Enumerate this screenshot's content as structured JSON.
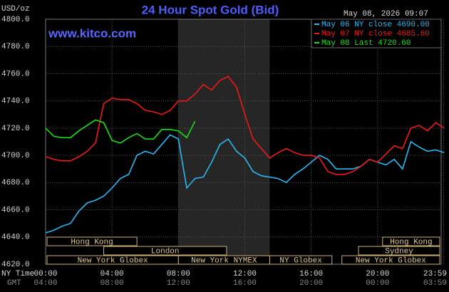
{
  "chart_data": {
    "type": "line",
    "title": "24 Hour Spot Gold (Bid)",
    "unit_label": "USD/oz",
    "timestamp": "May 08, 2026 09:07",
    "website": "www.kitco.com",
    "x_axis_label": "NY Time",
    "x2_axis_label": "GMT",
    "x": [
      0,
      0.5,
      1,
      1.5,
      2,
      2.5,
      3,
      3.5,
      4,
      4.5,
      5,
      5.5,
      6,
      6.5,
      7,
      7.5,
      8,
      8.5,
      9,
      9.5,
      10,
      10.5,
      11,
      11.5,
      12,
      12.5,
      13,
      13.5,
      14,
      14.5,
      15,
      15.5,
      16,
      16.5,
      17,
      17.5,
      18,
      18.5,
      19,
      19.5,
      20,
      20.5,
      21,
      21.5,
      22,
      22.5,
      23,
      23.5,
      24
    ],
    "series": [
      {
        "name": "May 06 NY close 4690.00",
        "color": "#2ab8f0",
        "values": [
          4643,
          4645,
          4648,
          4650,
          4659,
          4665,
          4667,
          4670,
          4676,
          4683,
          4686,
          4700,
          4703,
          4701,
          4708,
          4715,
          4712,
          4676,
          4683,
          4684,
          4695,
          4708,
          4712,
          4703,
          4698,
          4688,
          4685,
          4684,
          4683,
          4680,
          4686,
          4690,
          4695,
          4700,
          4697,
          4690,
          4690,
          4690,
          4692,
          4697,
          4695,
          4693,
          4697,
          4690,
          4710,
          4706,
          4703,
          4704,
          4702
        ]
      },
      {
        "name": "May 07 NY close 4685.60",
        "color": "#f01818",
        "values": [
          4699,
          4697,
          4696,
          4696,
          4699,
          4703,
          4709,
          4738,
          4742,
          4741,
          4741,
          4738,
          4733,
          4732,
          4730,
          4733,
          4740,
          4740,
          4745,
          4752,
          4748,
          4755,
          4758,
          4750,
          4730,
          4712,
          4705,
          4698,
          4702,
          4705,
          4702,
          4700,
          4700,
          4698,
          4688,
          4686,
          4686,
          4688,
          4692,
          4697,
          4695,
          4701,
          4707,
          4705,
          4720,
          4722,
          4718,
          4724,
          4720
        ]
      },
      {
        "name": "May 08 Last 4720.60",
        "color": "#18e018",
        "values": [
          4720,
          4714,
          4713,
          4713,
          4718,
          4722,
          4726,
          4724,
          4711,
          4709,
          4713,
          4716,
          4712,
          4712,
          4719,
          4719,
          4718,
          4713,
          4725,
          null,
          null,
          null,
          null,
          null,
          null,
          null,
          null,
          null,
          null,
          null,
          null,
          null,
          null,
          null,
          null,
          null,
          null,
          null,
          null,
          null,
          null,
          null,
          null,
          null,
          null,
          null,
          null,
          null,
          null
        ]
      }
    ],
    "xlim": [
      0,
      24
    ],
    "ylim": [
      4620,
      4800
    ],
    "xticks": [
      {
        "value": 0,
        "label": "00:00"
      },
      {
        "value": 4,
        "label": "04:00"
      },
      {
        "value": 8,
        "label": "08:00"
      },
      {
        "value": 12,
        "label": "12:00"
      },
      {
        "value": 16,
        "label": "16:00"
      },
      {
        "value": 20,
        "label": "20:00"
      },
      {
        "value": 23.98,
        "label": "23:59"
      }
    ],
    "x2ticks": [
      "04:00",
      "08:00",
      "12:00",
      "16:00",
      "20:00",
      "00:00",
      "03:59"
    ],
    "yticks": [
      {
        "value": 4620,
        "label": "4620.0"
      },
      {
        "value": 4640,
        "label": "4640.0"
      },
      {
        "value": 4660,
        "label": "4660.0"
      },
      {
        "value": 4680,
        "label": "4680.0"
      },
      {
        "value": 4700,
        "label": "4700.0"
      },
      {
        "value": 4720,
        "label": "4720.0"
      },
      {
        "value": 4740,
        "label": "4740.0"
      },
      {
        "value": 4760,
        "label": "4760.0"
      },
      {
        "value": 4780,
        "label": "4780.0"
      },
      {
        "value": 4800,
        "label": "4800.0"
      }
    ],
    "grid": true,
    "sessions": [
      {
        "name": "Hong Kong",
        "start": 0,
        "end": 5.5
      },
      {
        "name": "Hong Kong",
        "start": 20.3,
        "end": 24
      },
      {
        "name": "London",
        "start": 3.5,
        "end": 10.9
      },
      {
        "name": "Sydney",
        "start": 18.85,
        "end": 24
      },
      {
        "name": "New York Globex",
        "start": 0,
        "end": 8
      },
      {
        "name": "New York NYMEX",
        "start": 8,
        "end": 13.5
      },
      {
        "name": "NY Globex",
        "start": 13.5,
        "end": 17.25
      },
      {
        "name": "New York Globex",
        "start": 17.85,
        "end": 24
      }
    ]
  }
}
